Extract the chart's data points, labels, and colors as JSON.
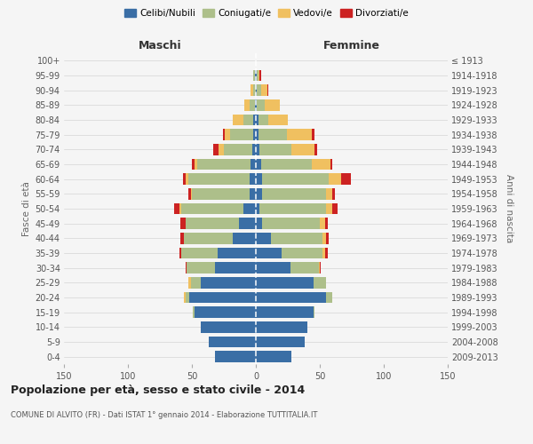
{
  "age_groups": [
    "0-4",
    "5-9",
    "10-14",
    "15-19",
    "20-24",
    "25-29",
    "30-34",
    "35-39",
    "40-44",
    "45-49",
    "50-54",
    "55-59",
    "60-64",
    "65-69",
    "70-74",
    "75-79",
    "80-84",
    "85-89",
    "90-94",
    "95-99",
    "100+"
  ],
  "birth_years": [
    "2009-2013",
    "2004-2008",
    "1999-2003",
    "1994-1998",
    "1989-1993",
    "1984-1988",
    "1979-1983",
    "1974-1978",
    "1969-1973",
    "1964-1968",
    "1959-1963",
    "1954-1958",
    "1949-1953",
    "1944-1948",
    "1939-1943",
    "1934-1938",
    "1929-1933",
    "1924-1928",
    "1919-1923",
    "1914-1918",
    "≤ 1913"
  ],
  "males": {
    "celibi": [
      32,
      37,
      43,
      48,
      52,
      43,
      32,
      30,
      18,
      13,
      10,
      5,
      5,
      4,
      3,
      2,
      2,
      1,
      0,
      1,
      0
    ],
    "coniugati": [
      0,
      0,
      0,
      1,
      3,
      8,
      22,
      28,
      38,
      42,
      48,
      45,
      48,
      42,
      22,
      18,
      8,
      4,
      2,
      1,
      0
    ],
    "vedovi": [
      0,
      0,
      0,
      0,
      1,
      2,
      0,
      0,
      0,
      0,
      2,
      1,
      2,
      2,
      4,
      4,
      8,
      4,
      2,
      0,
      0
    ],
    "divorziati": [
      0,
      0,
      0,
      0,
      0,
      0,
      1,
      2,
      3,
      4,
      4,
      2,
      2,
      2,
      4,
      2,
      0,
      0,
      0,
      0,
      0
    ]
  },
  "females": {
    "nubili": [
      28,
      38,
      40,
      45,
      55,
      45,
      27,
      20,
      12,
      5,
      3,
      5,
      5,
      4,
      3,
      2,
      2,
      1,
      1,
      1,
      0
    ],
    "coniugate": [
      0,
      0,
      0,
      1,
      5,
      10,
      22,
      32,
      40,
      45,
      52,
      50,
      52,
      40,
      25,
      22,
      8,
      6,
      3,
      1,
      0
    ],
    "vedove": [
      0,
      0,
      0,
      0,
      0,
      0,
      1,
      2,
      3,
      4,
      5,
      5,
      10,
      14,
      18,
      20,
      15,
      12,
      5,
      1,
      0
    ],
    "divorziate": [
      0,
      0,
      0,
      0,
      0,
      0,
      1,
      2,
      2,
      2,
      4,
      2,
      7,
      2,
      2,
      2,
      0,
      0,
      1,
      1,
      0
    ]
  },
  "colors": {
    "celibi_nubili": "#3A6EA5",
    "coniugati": "#ADBF8A",
    "vedovi": "#F0C060",
    "divorziati": "#CC2222"
  },
  "xlim": 150,
  "title": "Popolazione per età, sesso e stato civile - 2014",
  "subtitle": "COMUNE DI ALVITO (FR) - Dati ISTAT 1° gennaio 2014 - Elaborazione TUTTITALIA.IT",
  "ylabel_left": "Fasce di età",
  "ylabel_right": "Anni di nascita",
  "xlabel_left": "Maschi",
  "xlabel_right": "Femmine",
  "legend_labels": [
    "Celibi/Nubili",
    "Coniugati/e",
    "Vedovi/e",
    "Divorziati/e"
  ],
  "background_color": "#f5f5f5",
  "bar_height": 0.75
}
